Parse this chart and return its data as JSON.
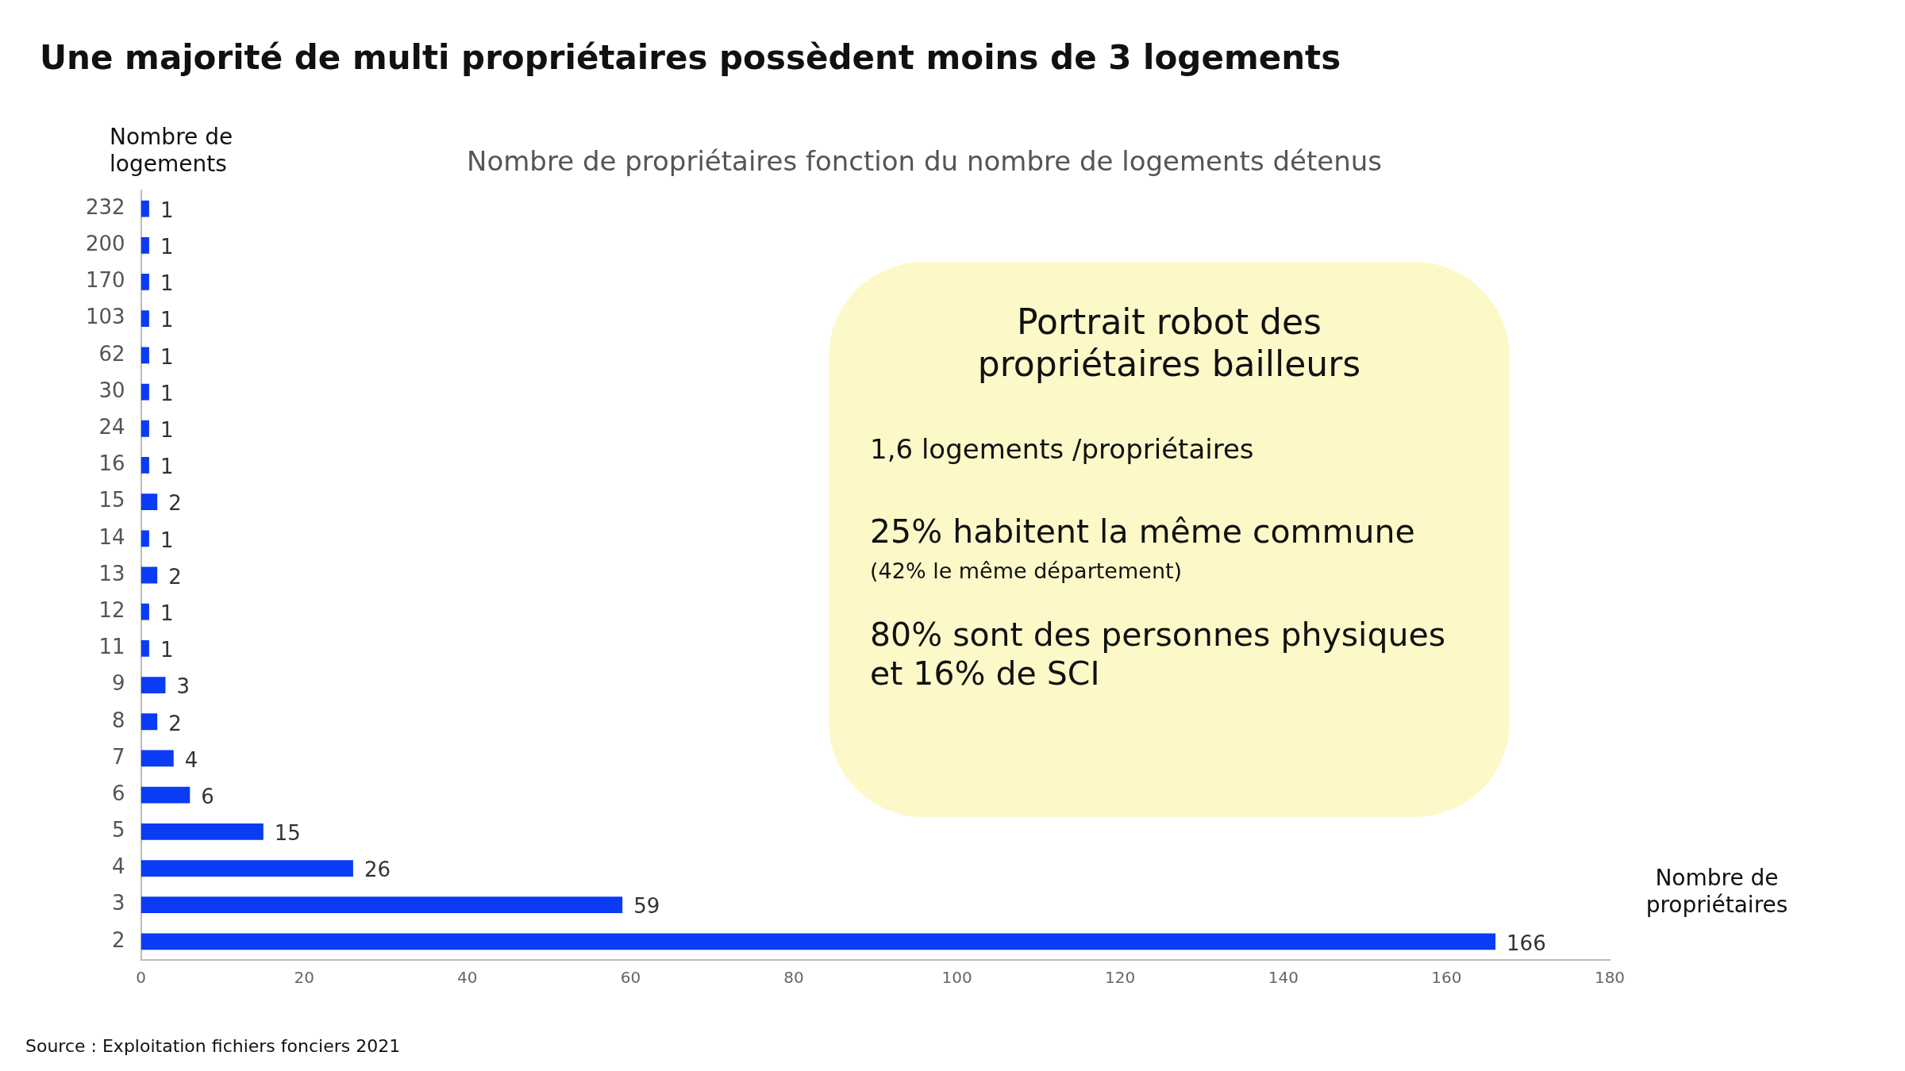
{
  "chart_data": {
    "type": "bar",
    "orientation": "horizontal",
    "title": "Une majorité de multi propriétaires possèdent moins de 3 logements",
    "subtitle": "Nombre de propriétaires fonction du nombre de logements détenus",
    "ylabel": "Nombre de logements",
    "xlabel": "Nombre de propriétaires",
    "categories": [
      "232",
      "200",
      "170",
      "103",
      "62",
      "30",
      "24",
      "16",
      "15",
      "14",
      "13",
      "12",
      "11",
      "9",
      "8",
      "7",
      "6",
      "5",
      "4",
      "3",
      "2"
    ],
    "values": [
      1,
      1,
      1,
      1,
      1,
      1,
      1,
      1,
      2,
      1,
      2,
      1,
      1,
      3,
      2,
      4,
      6,
      15,
      26,
      59,
      166
    ],
    "color": "#0a3cf5",
    "xlim": [
      0,
      180
    ],
    "xticks": [
      0,
      20,
      40,
      60,
      80,
      100,
      120,
      140,
      160,
      180
    ],
    "data_labels": true,
    "grid": false,
    "legend": false,
    "annotations": [
      "Portrait robot des propriétaires bailleurs",
      "1,6 logements /propriétaires",
      "25% habitent la même commune",
      "(42% le même département)",
      "80% sont des personnes physiques et 16% de SCI",
      "Source : Exploitation fichiers fonciers 2021"
    ]
  }
}
